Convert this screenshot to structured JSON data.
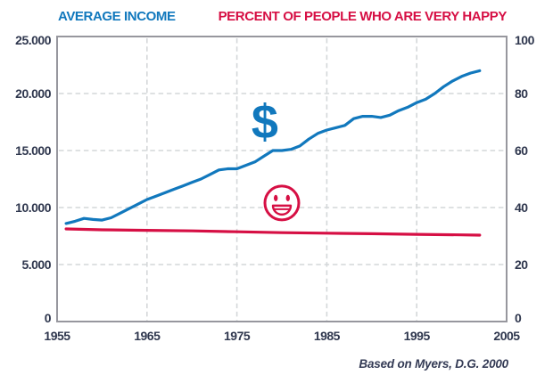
{
  "header": {
    "left_title": "AVERAGE INCOME",
    "right_title": "PERCENT OF PEOPLE WHO ARE VERY HAPPY"
  },
  "caption": "Based on Myers, D.G. 2000",
  "colors": {
    "income_blue": "#1178bd",
    "happy_red": "#d60f44",
    "axis_text": "#2f374e",
    "plot_border": "#97979e",
    "gridline": "#d4d7d9",
    "background": "#ffffff"
  },
  "icons": {
    "income_icon": "dollar-sign-icon",
    "income_glyph": "$",
    "happy_icon": "smiley-face-icon"
  },
  "chart_data": {
    "type": "line",
    "title_left": "AVERAGE INCOME",
    "title_right": "PERCENT OF PEOPLE WHO ARE VERY HAPPY",
    "source": "Based on Myers, D.G. 2000",
    "grid": "dashed",
    "x_axis": {
      "min": 1955,
      "max": 2005,
      "tick_labels": [
        "1955",
        "1965",
        "1975",
        "1985",
        "1995",
        "2005"
      ],
      "tick_values": [
        1955,
        1965,
        1975,
        1985,
        1995,
        2005
      ],
      "gridline_values": [
        1965,
        1975,
        1985,
        1995
      ]
    },
    "y_axis_left": {
      "title": "AVERAGE INCOME",
      "min": 0,
      "max": 25000,
      "tick_labels": [
        "25.000",
        "20.000",
        "15.000",
        "10.000",
        "5.000",
        "0"
      ],
      "tick_values": [
        25000,
        20000,
        15000,
        10000,
        5000,
        0
      ],
      "gridline_values": [
        20000,
        15000,
        10000,
        5000
      ]
    },
    "y_axis_right": {
      "title": "PERCENT OF PEOPLE WHO ARE VERY HAPPY",
      "min": 0,
      "max": 100,
      "tick_labels": [
        "100",
        "80",
        "60",
        "40",
        "20",
        "0"
      ],
      "tick_values": [
        100,
        80,
        60,
        40,
        20,
        0
      ]
    },
    "series": [
      {
        "name": "Average income",
        "axis": "left",
        "color": "#1178bd",
        "years": [
          1956,
          1957,
          1958,
          1959,
          1960,
          1961,
          1962,
          1963,
          1964,
          1965,
          1966,
          1967,
          1968,
          1969,
          1970,
          1971,
          1972,
          1973,
          1974,
          1975,
          1976,
          1977,
          1978,
          1979,
          1980,
          1981,
          1982,
          1983,
          1984,
          1985,
          1986,
          1987,
          1988,
          1989,
          1990,
          1991,
          1992,
          1993,
          1994,
          1995,
          1996,
          1997,
          1998,
          1999,
          2000,
          2001,
          2002
        ],
        "values": [
          8600,
          8800,
          9050,
          8950,
          8900,
          9100,
          9500,
          9900,
          10300,
          10700,
          11000,
          11300,
          11600,
          11900,
          12200,
          12500,
          12900,
          13300,
          13400,
          13400,
          13700,
          14000,
          14500,
          15000,
          15000,
          15100,
          15400,
          16000,
          16500,
          16800,
          17000,
          17200,
          17800,
          18000,
          18000,
          17900,
          18100,
          18500,
          18800,
          19200,
          19500,
          20000,
          20600,
          21100,
          21500,
          21800,
          22000
        ]
      },
      {
        "name": "Percent of people who are very happy",
        "axis": "right",
        "color": "#d60f44",
        "years": [
          1956,
          1960,
          1965,
          1970,
          1975,
          1980,
          1985,
          1990,
          1995,
          2000,
          2002
        ],
        "values": [
          32.5,
          32.2,
          32.0,
          31.8,
          31.5,
          31.2,
          31.0,
          30.8,
          30.6,
          30.4,
          30.3
        ]
      }
    ],
    "annotations": [
      {
        "name": "dollar-sign-icon",
        "glyph": "$",
        "year": 1978.1,
        "value_left": 17500
      },
      {
        "name": "smiley-face-icon",
        "year": 1980.0,
        "value_right": 41.6
      }
    ]
  }
}
